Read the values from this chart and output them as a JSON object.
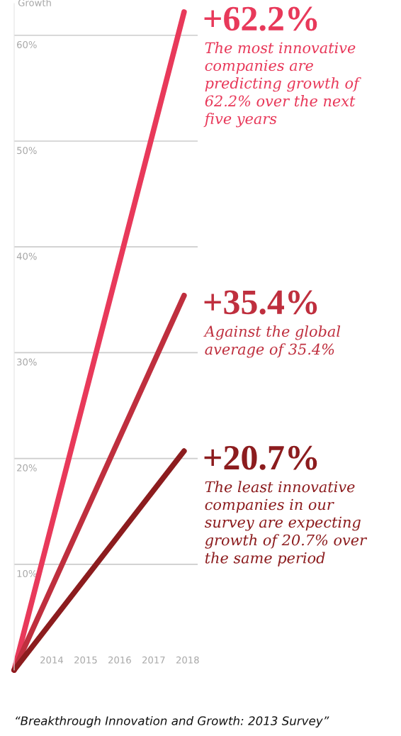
{
  "chart_data": {
    "type": "line",
    "ylabel": "Growth",
    "x": [
      2013,
      2018
    ],
    "series": [
      {
        "color": "#e8395a",
        "values": [
          0,
          62.2
        ]
      },
      {
        "color": "#bf2f3e",
        "values": [
          0,
          35.4
        ]
      },
      {
        "color": "#8c1c1e",
        "values": [
          0,
          20.7
        ]
      }
    ],
    "xlim": [
      2013,
      2018.4
    ],
    "xticks": [
      2014,
      2015,
      2016,
      2017,
      2018
    ],
    "ylim": [
      0,
      63
    ],
    "yticks": [
      {
        "value": 10,
        "label": "10%"
      },
      {
        "value": 20,
        "label": "20%"
      },
      {
        "value": 30,
        "label": "30%"
      },
      {
        "value": 40,
        "label": "40%"
      },
      {
        "value": 50,
        "label": "50%"
      },
      {
        "value": 60,
        "label": "60%"
      }
    ],
    "grid": "y",
    "line_style": "solid",
    "annotations": [
      "+62.2%",
      "The most innovative\ncompanies are\npredicting growth of\n62.2% over the next\nfive years",
      "+35.4%",
      "Against the global\naverage of 35.4%",
      "+20.7%",
      "The least innovative\ncompanies in our\nsurvey are expecting\ngrowth of 20.7% over\nthe same period",
      "“Breakthrough Innovation and Growth: 2013 Survey”"
    ]
  }
}
